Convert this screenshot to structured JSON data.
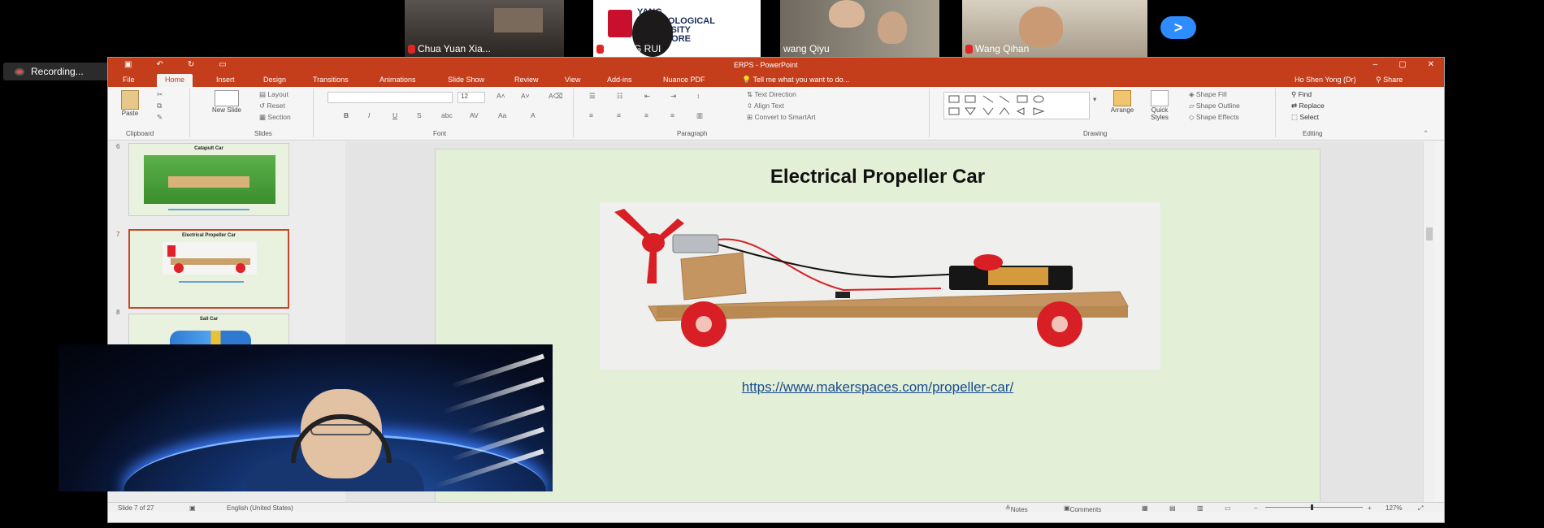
{
  "participants": [
    {
      "name": "Chua Yuan Xia..."
    },
    {
      "name": "HUANG RUI"
    },
    {
      "name": "wang Qiyu"
    },
    {
      "name": "Wang Qihan"
    }
  ],
  "participant_bg_logo": {
    "line1": "YANG",
    "line2": "TECHNOLOGICAL",
    "line3": "UNIVERSITY",
    "line4": "SINGAPORE"
  },
  "next_button": ">",
  "recording": {
    "label": "Recording..."
  },
  "ppt": {
    "window_title": "ERPS - PowerPoint",
    "window_controls": [
      "–",
      "▢",
      "✕"
    ],
    "tabs": [
      "File",
      "Home",
      "Insert",
      "Design",
      "Transitions",
      "Animations",
      "Slide Show",
      "Review",
      "View",
      "Add-ins",
      "Nuance PDF"
    ],
    "tell_me": "Tell me what you want to do...",
    "user": "Ho Shen Yong (Dr)",
    "share": "Share",
    "ribbon": {
      "paste": "Paste",
      "clipboard": "Clipboard",
      "new_slide": "New Slide",
      "layout": "Layout",
      "reset": "Reset",
      "section": "Section",
      "slides": "Slides",
      "font_size": "12",
      "font": "Font",
      "paragraph": "Paragraph",
      "text_direction": "Text Direction",
      "align_text": "Align Text",
      "convert_smartart": "Convert to SmartArt",
      "arrange": "Arrange",
      "quick_styles": "Quick Styles",
      "shape_fill": "Shape Fill",
      "shape_outline": "Shape Outline",
      "shape_effects": "Shape Effects",
      "drawing": "Drawing",
      "find": "Find",
      "replace": "Replace",
      "select": "Select",
      "editing": "Editing"
    },
    "thumbnails": [
      {
        "num": "6",
        "title": "Catapult Car"
      },
      {
        "num": "7",
        "title": "Electrical Propeller Car"
      },
      {
        "num": "8",
        "title": "Sail Car"
      }
    ],
    "slide": {
      "title": "Electrical Propeller Car",
      "link": "https://www.makerspaces.com/propeller-car/"
    },
    "status": {
      "slide_count": "Slide 7 of 27",
      "language": "English (United States)",
      "notes": "Notes",
      "comments": "Comments",
      "zoom": "127%"
    }
  }
}
